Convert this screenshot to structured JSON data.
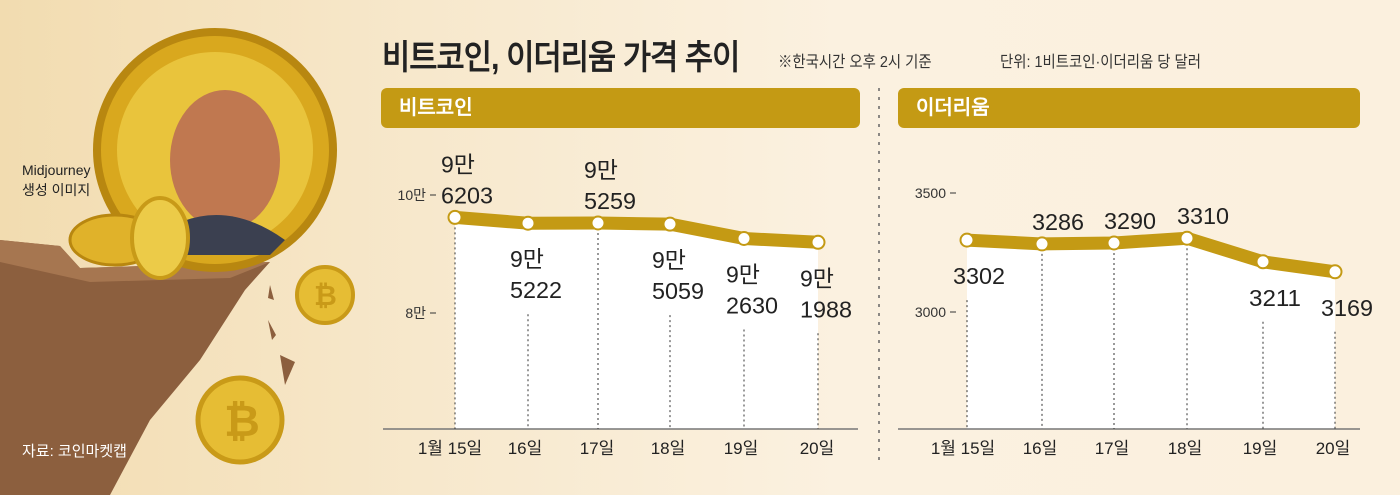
{
  "title": "비트코인, 이더리움 가격 추이",
  "note_time": "※한국시간 오후 2시 기준",
  "note_unit": "단위: 1비트코인·이더리움 당 달러",
  "image_credit": [
    "Midjourney",
    "생성 이미지"
  ],
  "source": "자료: 코인마켓캡",
  "colors": {
    "accent": "#c49a14",
    "background": "#f7e8cc",
    "area": "#ffffff"
  },
  "chart_data": [
    {
      "type": "line",
      "title": "비트코인",
      "categories": [
        "1월 15일",
        "16일",
        "17일",
        "18일",
        "19일",
        "20일"
      ],
      "values": [
        96203,
        95222,
        95259,
        95059,
        92630,
        91988
      ],
      "data_labels": [
        [
          "9만",
          "6203"
        ],
        [
          "9만",
          "5222"
        ],
        [
          "9만",
          "5259"
        ],
        [
          "9만",
          "5059"
        ],
        [
          "9만",
          "2630"
        ],
        [
          "9만",
          "1988"
        ]
      ],
      "yticks": [
        {
          "value": 100000,
          "label": "10만"
        },
        {
          "value": 80000,
          "label": "8만"
        }
      ],
      "label_position": [
        "above",
        "below",
        "above",
        "below",
        "below",
        "below"
      ]
    },
    {
      "type": "line",
      "title": "이더리움",
      "categories": [
        "1월 15일",
        "16일",
        "17일",
        "18일",
        "19일",
        "20일"
      ],
      "values": [
        3302,
        3286,
        3290,
        3310,
        3211,
        3169
      ],
      "data_labels": [
        [
          "3302"
        ],
        [
          "3286"
        ],
        [
          "3290"
        ],
        [
          "3310"
        ],
        [
          "3211"
        ],
        [
          "3169"
        ]
      ],
      "yticks": [
        {
          "value": 3500,
          "label": "3500"
        },
        {
          "value": 3000,
          "label": "3000"
        }
      ],
      "label_position": [
        "below",
        "above",
        "above",
        "above",
        "below",
        "below"
      ]
    }
  ]
}
